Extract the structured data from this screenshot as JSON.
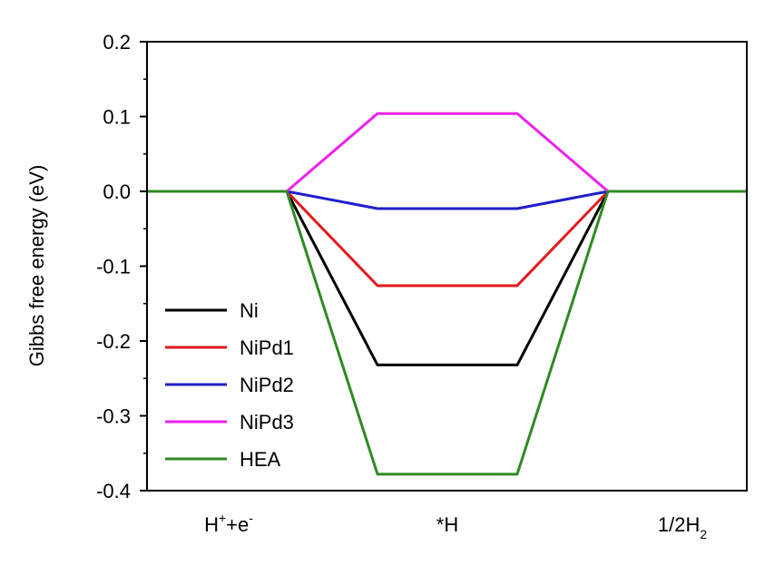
{
  "chart_data": {
    "type": "line",
    "title": "",
    "xlabel": "",
    "ylabel": "Gibbs free energy (eV)",
    "ylim": [
      -0.4,
      0.2
    ],
    "yticks": [
      "0.2",
      "0.1",
      "0.0",
      "-0.1",
      "-0.2",
      "-0.3",
      "-0.4"
    ],
    "ytick_values": [
      0.2,
      0.1,
      0.0,
      -0.1,
      -0.2,
      -0.3,
      -0.4
    ],
    "categories": [
      {
        "base": "H",
        "sup1": "+",
        "mid": "+e",
        "sup2": "-"
      },
      {
        "base": "*H"
      },
      {
        "base": "1/2H",
        "sub": "2"
      }
    ],
    "legend_position": "bottom-left",
    "grid": false,
    "series": [
      {
        "name": "Ni",
        "color": "#000000",
        "values": [
          0.0,
          -0.232,
          0.0
        ]
      },
      {
        "name": "NiPd1",
        "color": "#e31a1c",
        "values": [
          0.0,
          -0.126,
          0.0
        ]
      },
      {
        "name": "NiPd2",
        "color": "#1f1fcc",
        "values": [
          0.0,
          -0.023,
          0.0
        ]
      },
      {
        "name": "NiPd3",
        "color": "#ee22ee",
        "values": [
          0.0,
          0.104,
          0.0
        ]
      },
      {
        "name": "HEA",
        "color": "#2e8b22",
        "values": [
          0.0,
          -0.378,
          0.0
        ]
      }
    ]
  }
}
